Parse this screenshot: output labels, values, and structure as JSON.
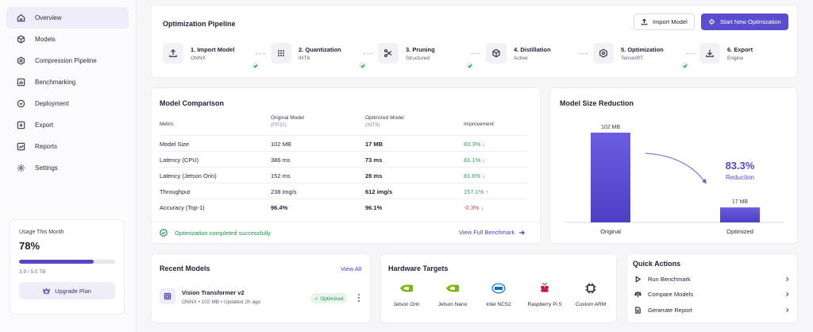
{
  "sidebar": {
    "items": [
      {
        "label": "Overview",
        "icon": "home-icon",
        "active": true
      },
      {
        "label": "Models",
        "icon": "cube-icon"
      },
      {
        "label": "Compression Pipeline",
        "icon": "pipeline-icon"
      },
      {
        "label": "Benchmarking",
        "icon": "chart-icon"
      },
      {
        "label": "Deployment",
        "icon": "rocket-icon"
      },
      {
        "label": "Export",
        "icon": "export-icon"
      },
      {
        "label": "Reports",
        "icon": "report-icon"
      },
      {
        "label": "Settings",
        "icon": "gear-icon"
      }
    ],
    "usage": {
      "title": "Usage This Month",
      "percent": "78%",
      "progress": 0.78,
      "detail": "3.9 / 5.0 TB",
      "upgrade_label": "Upgrade Plan"
    }
  },
  "pipeline": {
    "title": "Optimization Pipeline",
    "import_label": "Import Model",
    "start_label": "Start New Optimization",
    "steps": [
      {
        "name": "1. Import Model",
        "sub": "ONNX",
        "icon": "upload-icon"
      },
      {
        "name": "2. Quantization",
        "sub": "INT8",
        "icon": "grid-icon"
      },
      {
        "name": "3. Pruning",
        "sub": "Structured",
        "icon": "scissors-icon"
      },
      {
        "name": "4. Distillation",
        "sub": "Active",
        "icon": "box-icon"
      },
      {
        "name": "5. Optimization",
        "sub": "TensorRT",
        "icon": "target-icon"
      },
      {
        "name": "6. Export",
        "sub": "Engine",
        "icon": "download-icon"
      }
    ]
  },
  "comparison": {
    "title": "Model Comparison",
    "headers": {
      "metric": "Metric",
      "original": "Original Model",
      "original_sub": "(FP32)",
      "optimized": "Optimized Model",
      "optimized_sub": "(INT8)",
      "improvement": "Improvement"
    },
    "rows": [
      {
        "metric": "Model Size",
        "original": "102 MB",
        "optimized": "17 MB",
        "improvement": "83.3% ↓",
        "status": "good"
      },
      {
        "metric": "Latency (CPU)",
        "original": "386 ms",
        "optimized": "73 ms",
        "improvement": "81.1% ↓",
        "status": "good"
      },
      {
        "metric": "Latency (Jetson Orin)",
        "original": "152 ms",
        "optimized": "28 ms",
        "improvement": "81.6% ↓",
        "status": "good"
      },
      {
        "metric": "Throughput",
        "original": "238 img/s",
        "optimized": "612 img/s",
        "improvement": "157.1% ↑",
        "status": "good"
      },
      {
        "metric": "Accuracy (Top-1)",
        "original": "96.4%",
        "optimized": "96.1%",
        "improvement": "-0.3% ↓",
        "status": "bad"
      }
    ],
    "success_message": "Optimization completed successfully",
    "benchmark_link": "View Full Benchmark"
  },
  "size_chart": {
    "title": "Model Size Reduction",
    "reduction_value": "83.3%",
    "reduction_label": "Reduction",
    "accent": "#5a4dd0",
    "chart_data": {
      "type": "bar",
      "categories": [
        "Original",
        "Optimized"
      ],
      "values": [
        102,
        17
      ],
      "value_labels": [
        "102 MB",
        "17 MB"
      ],
      "ylim": [
        0,
        102
      ]
    }
  },
  "recent": {
    "title": "Recent Models",
    "view_all": "View All",
    "model": {
      "name": "Vision Transformer v2",
      "meta": "ONNX • 102 MB • Updated 2h ago",
      "badge": "✓ Optimized"
    }
  },
  "hardware": {
    "title": "Hardware Targets",
    "targets": [
      {
        "name": "Jetson Orin",
        "icon": "nvidia-icon"
      },
      {
        "name": "Jetson Nano",
        "icon": "nvidia-icon"
      },
      {
        "name": "Intel NCS2",
        "icon": "intel-icon"
      },
      {
        "name": "Raspberry Pi 5",
        "icon": "raspberry-icon"
      },
      {
        "name": "Custom ARM",
        "icon": "chip-icon"
      }
    ]
  },
  "quick_actions": {
    "title": "Quick Actions",
    "items": [
      {
        "label": "Run Benchmark",
        "icon": "play-icon"
      },
      {
        "label": "Compare Models",
        "icon": "compare-icon"
      },
      {
        "label": "Generate Report",
        "icon": "report-icon"
      }
    ]
  }
}
